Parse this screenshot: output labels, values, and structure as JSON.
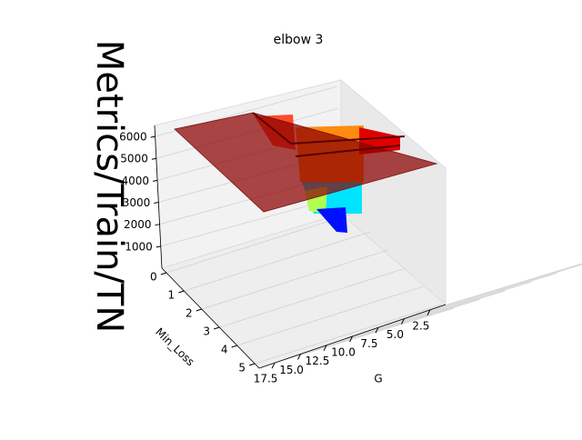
{
  "chart_data": {
    "type": "surface3d",
    "title": "elbow 3",
    "xlabel": "G",
    "ylabel": "Min_Loss",
    "zlabel": "Metrics/Train/TN",
    "xlim": [
      1,
      19
    ],
    "xticks": [
      2.5,
      5.0,
      7.5,
      10.0,
      12.5,
      15.0,
      17.5
    ],
    "ylim": [
      -0.25,
      5.25
    ],
    "yticks": [
      0,
      1,
      2,
      3,
      4,
      5
    ],
    "zlim": [
      0,
      6500
    ],
    "zticks": [
      1000,
      2000,
      3000,
      4000,
      5000,
      6000
    ],
    "grid": true
  }
}
